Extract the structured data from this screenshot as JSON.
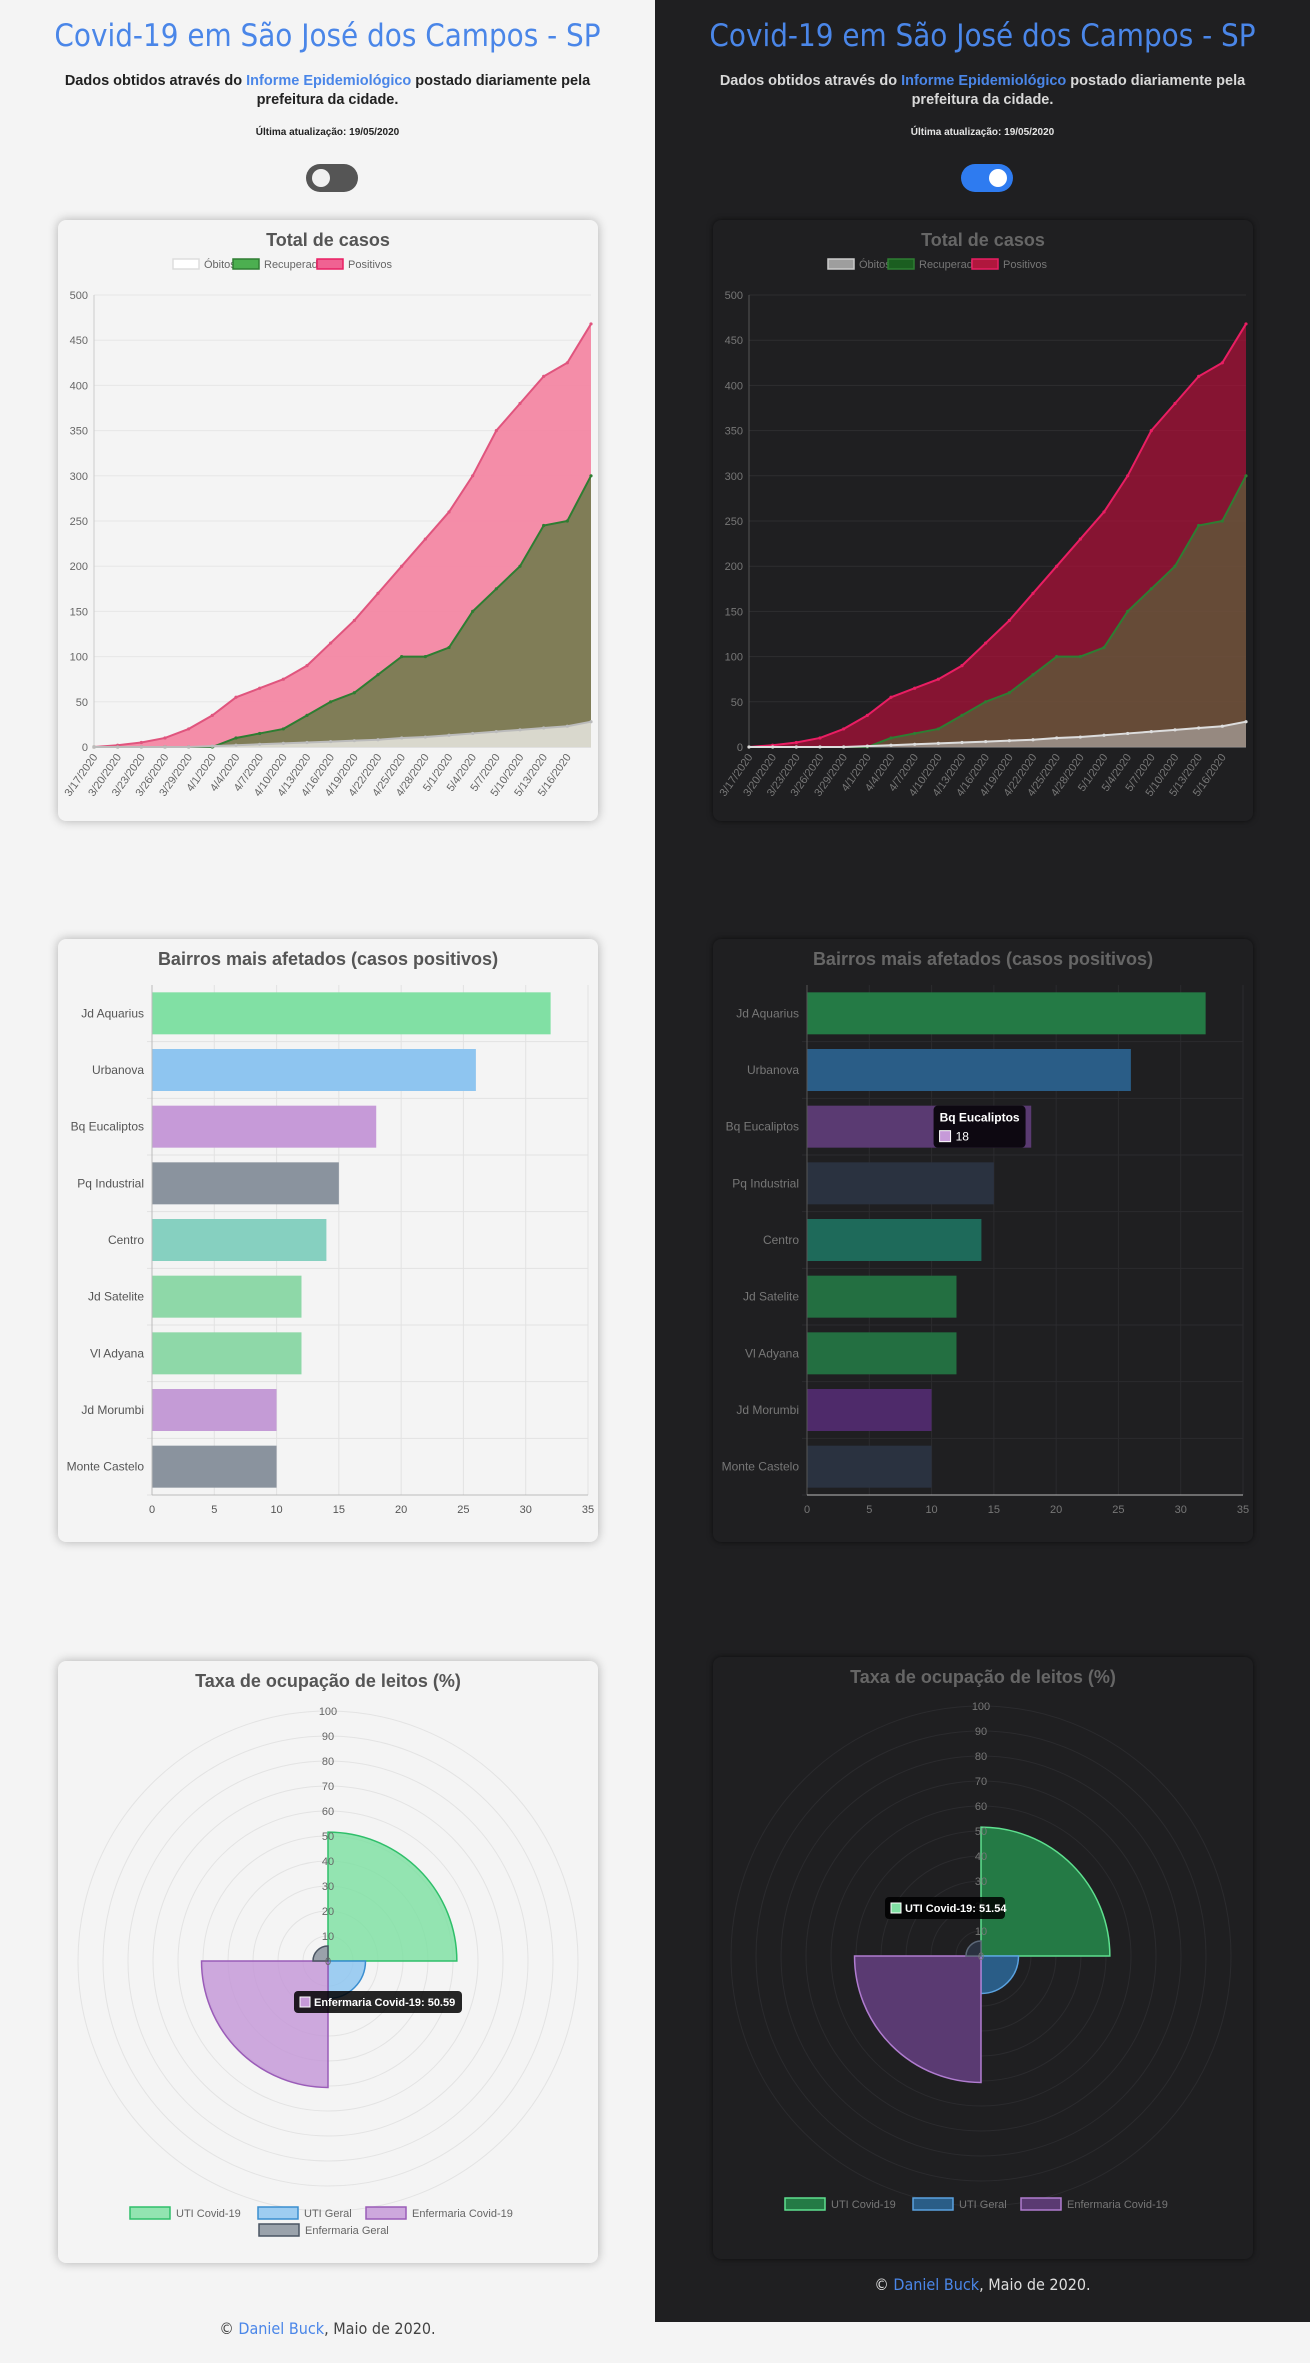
{
  "header": {
    "title": "Covid-19 em São José dos Campos - SP",
    "subtitle_before": "Dados obtidos através do ",
    "subtitle_link": "Informe Epidemiológico",
    "subtitle_after": " postado diariamente pela prefeitura da cidade.",
    "updated": "Última atualização: 19/05/2020"
  },
  "theme_toggle": {
    "light_state": "off",
    "dark_state": "on"
  },
  "footer": {
    "prefix": "© ",
    "author": "Daniel Buck",
    "suffix": ", Maio de 2020."
  },
  "colors": {
    "accent": "#4a86e8",
    "obitos": "#ffffff",
    "recuperados": "#4caf50",
    "positivos": "#f06292",
    "uti_covid": "#81e0a4",
    "uti_geral": "#8ec5f0",
    "enfermaria_covid": "#c69ad8",
    "enfermaria_geral": "#8a939e"
  },
  "chart_data": [
    {
      "type": "area",
      "title": "Total de casos",
      "x": [
        "3/17/2020",
        "3/20/2020",
        "3/23/2020",
        "3/26/2020",
        "3/29/2020",
        "4/1/2020",
        "4/4/2020",
        "4/7/2020",
        "4/10/2020",
        "4/13/2020",
        "4/16/2020",
        "4/19/2020",
        "4/22/2020",
        "4/25/2020",
        "4/28/2020",
        "5/1/2020",
        "5/4/2020",
        "5/7/2020",
        "5/10/2020",
        "5/13/2020",
        "5/16/2020",
        "5/19/2020"
      ],
      "x_tick_labels": [
        "3/17/2020",
        "3/20/2020",
        "3/23/2020",
        "3/26/2020",
        "3/29/2020",
        "4/1/2020",
        "4/4/2020",
        "4/7/2020",
        "4/10/2020",
        "4/13/2020",
        "4/16/2020",
        "4/19/2020",
        "4/22/2020",
        "4/25/2020",
        "4/28/2020",
        "5/1/2020",
        "5/4/2020",
        "5/7/2020",
        "5/10/2020",
        "5/13/2020",
        "5/16/2020"
      ],
      "y_ticks": [
        0,
        50,
        100,
        150,
        200,
        250,
        300,
        350,
        400,
        450,
        500
      ],
      "ylim": [
        0,
        500
      ],
      "legend_position": "top",
      "series": [
        {
          "name": "Óbitos",
          "values": [
            0,
            0,
            0,
            0,
            0,
            1,
            2,
            3,
            4,
            5,
            6,
            7,
            8,
            10,
            11,
            13,
            15,
            17,
            19,
            21,
            23,
            28
          ]
        },
        {
          "name": "Recuperados",
          "values": [
            0,
            0,
            0,
            0,
            0,
            0,
            10,
            15,
            20,
            35,
            50,
            60,
            80,
            100,
            100,
            110,
            150,
            175,
            200,
            245,
            250,
            300
          ]
        },
        {
          "name": "Positivos",
          "values": [
            0,
            2,
            5,
            10,
            20,
            35,
            55,
            65,
            75,
            90,
            115,
            140,
            170,
            200,
            230,
            260,
            300,
            350,
            380,
            410,
            425,
            468
          ]
        }
      ]
    },
    {
      "type": "bar",
      "orientation": "horizontal",
      "title": "Bairros mais afetados (casos positivos)",
      "categories": [
        "Jd Aquarius",
        "Urbanova",
        "Bq Eucaliptos",
        "Pq Industrial",
        "Centro",
        "Jd Satelite",
        "Vl Adyana",
        "Jd Morumbi",
        "Monte Castelo"
      ],
      "values": [
        32,
        26,
        18,
        15,
        14,
        12,
        12,
        10,
        10
      ],
      "x_ticks": [
        0,
        5,
        10,
        15,
        20,
        25,
        30,
        35
      ],
      "xlim": [
        0,
        35
      ],
      "tooltip_dark": {
        "title": "Bq Eucaliptos",
        "value": "18"
      }
    },
    {
      "type": "polar",
      "title": "Taxa de ocupação de leitos (%)",
      "r_ticks": [
        0,
        10,
        20,
        30,
        40,
        50,
        60,
        70,
        80,
        90,
        100
      ],
      "rlim": [
        0,
        100
      ],
      "categories": [
        "UTI Covid-19",
        "UTI Geral",
        "Enfermaria Covid-19",
        "Enfermaria Geral"
      ],
      "values": [
        51.54,
        15,
        50.59,
        6
      ],
      "legend_position": "bottom",
      "tooltip_light": "Enfermaria Covid-19: 50.59",
      "tooltip_dark": "UTI Covid-19: 51.54"
    }
  ]
}
